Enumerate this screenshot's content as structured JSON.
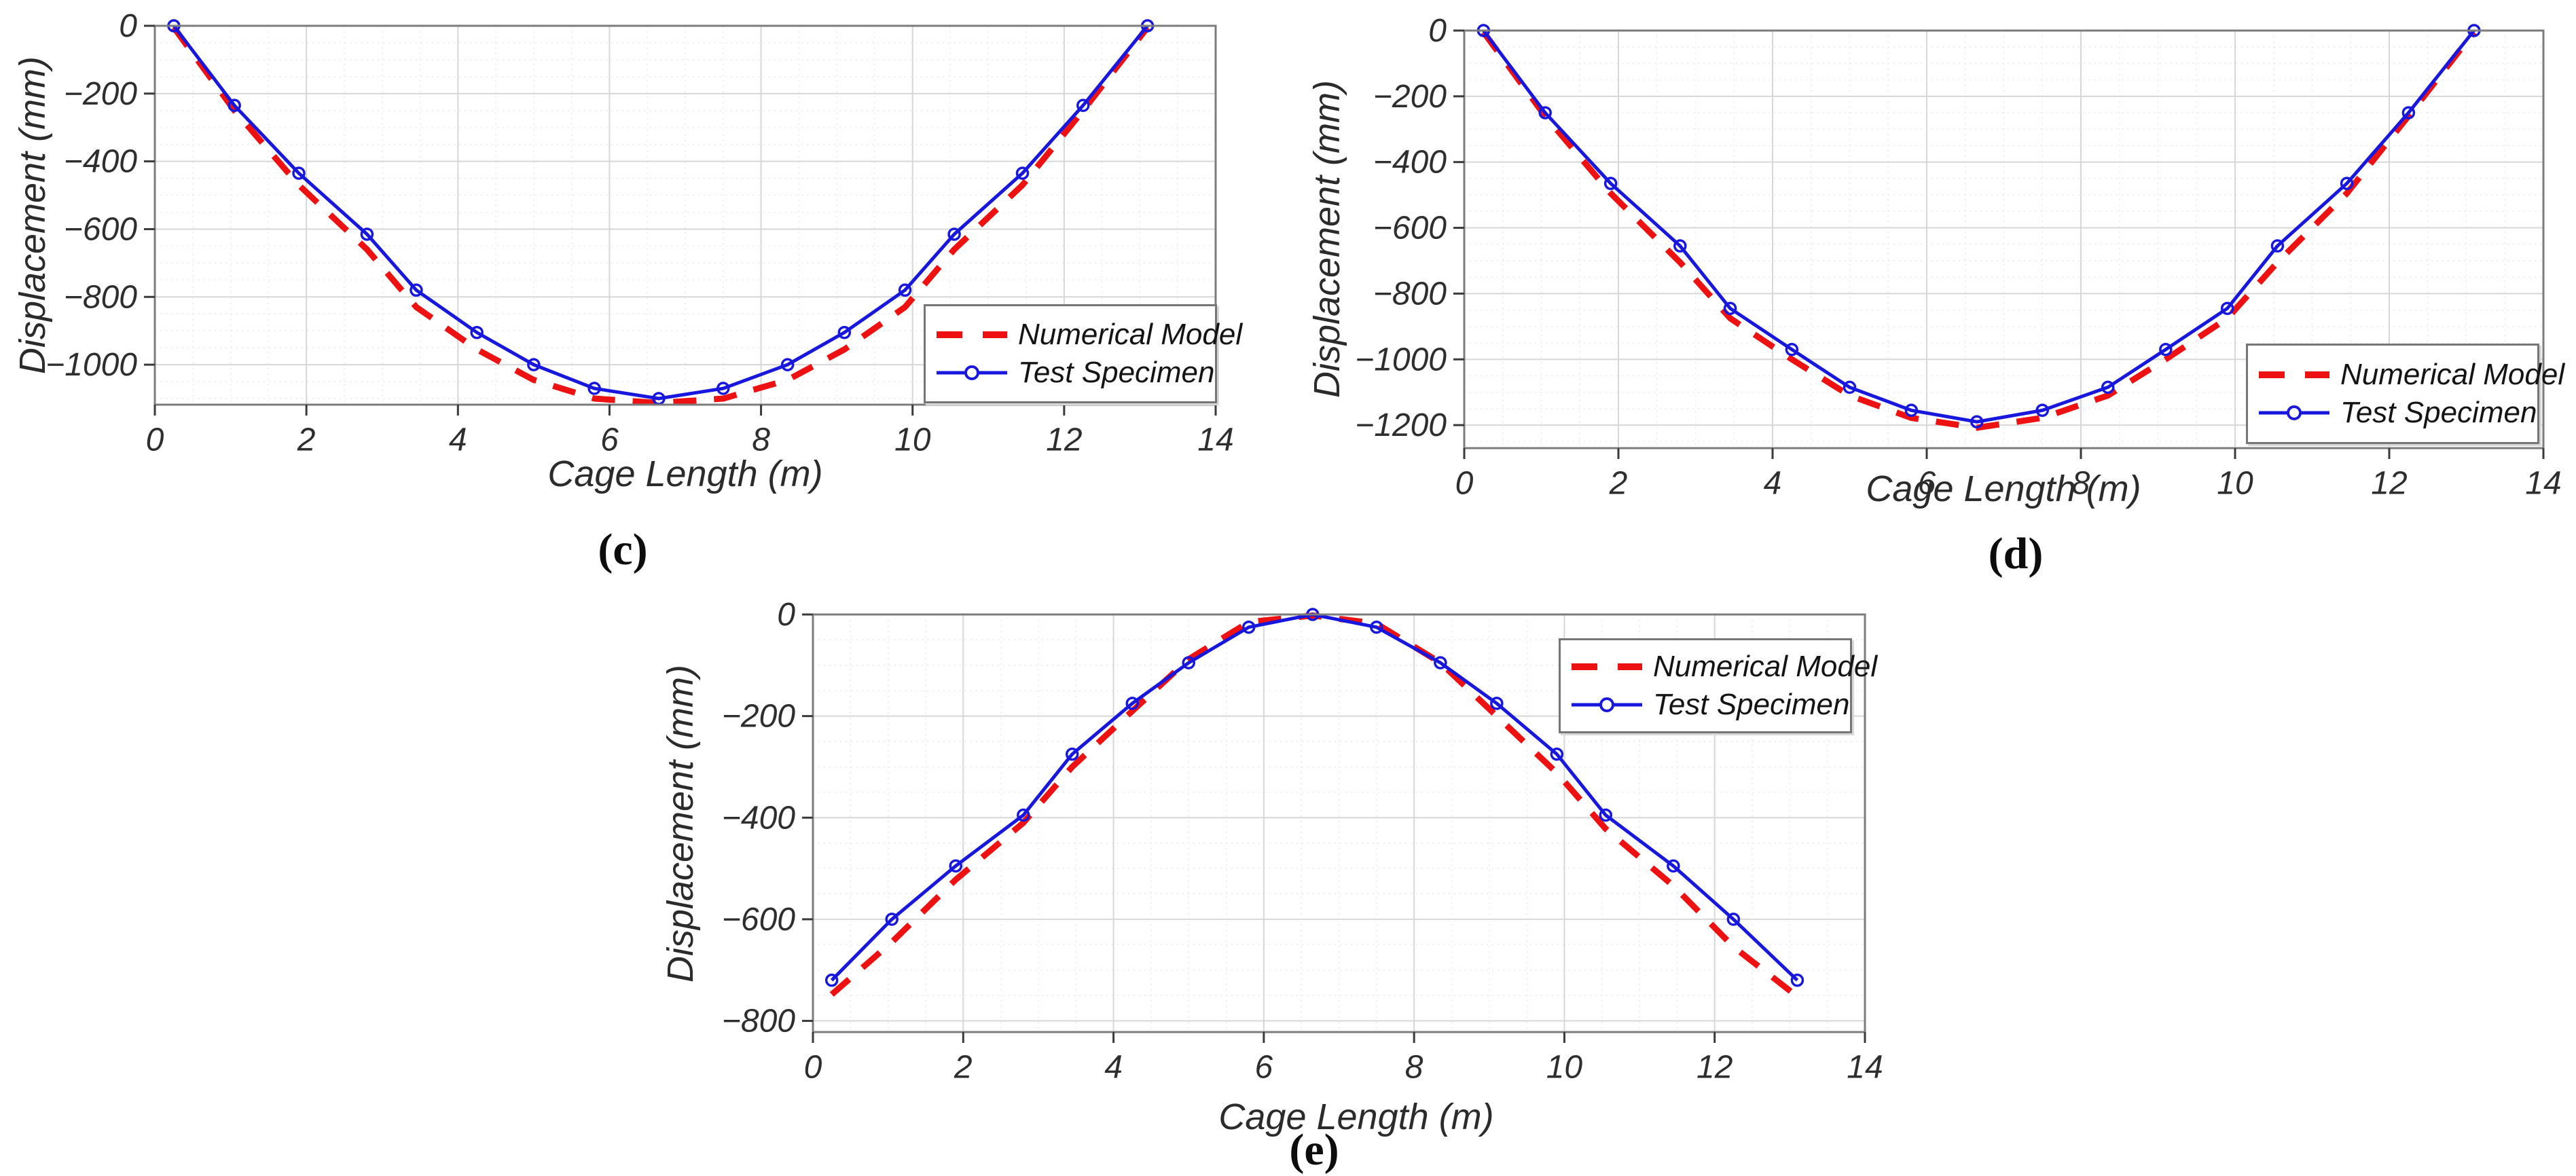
{
  "figure": {
    "description": "Displacement along cage length: numerical model vs test specimen",
    "background": "#ffffff"
  },
  "chart_data": [
    {
      "id": "c",
      "type": "line",
      "caption": "(c)",
      "xlabel": "Cage Length (m)",
      "ylabel": "Displacement (mm)",
      "xlim": [
        0,
        14
      ],
      "ylim": [
        -1118,
        0
      ],
      "xticks": [
        0,
        2,
        4,
        6,
        8,
        10,
        12,
        14
      ],
      "yticks": [
        0,
        -200,
        -400,
        -600,
        -800,
        -1000
      ],
      "grid": true,
      "legend_position": "southeast",
      "x": [
        0.25,
        1.05,
        1.9,
        2.8,
        3.45,
        4.25,
        5,
        5.8,
        6.65,
        7.5,
        8.35,
        9.1,
        9.9,
        10.55,
        11.45,
        12.25,
        13.1
      ],
      "series": [
        {
          "name": "Numerical Model",
          "color": "#ee1111",
          "style": "dashed",
          "y": [
            -5,
            -250,
            -470,
            -660,
            -830,
            -955,
            -1045,
            -1100,
            -1113,
            -1100,
            -1045,
            -955,
            -830,
            -660,
            -470,
            -250,
            -5
          ]
        },
        {
          "name": "Test Specimen",
          "color": "#1717dd",
          "style": "solid-marker",
          "y": [
            0,
            -235,
            -435,
            -615,
            -780,
            -905,
            -1000,
            -1070,
            -1100,
            -1070,
            -1000,
            -905,
            -780,
            -615,
            -435,
            -235,
            0
          ]
        }
      ]
    },
    {
      "id": "d",
      "type": "line",
      "caption": "(d)",
      "xlabel": "Cage Length (m)",
      "ylabel": "Displacement (mm)",
      "xlim": [
        0,
        14
      ],
      "ylim": [
        -1270,
        0
      ],
      "xticks": [
        0,
        2,
        4,
        6,
        8,
        10,
        12,
        14
      ],
      "yticks": [
        0,
        -200,
        -400,
        -600,
        -800,
        -1000,
        -1200
      ],
      "grid": true,
      "legend_position": "southeast",
      "x": [
        0.25,
        1.05,
        1.9,
        2.8,
        3.45,
        4.25,
        5,
        5.8,
        6.65,
        7.5,
        8.35,
        9.1,
        9.9,
        10.55,
        11.45,
        12.25,
        13.1
      ],
      "series": [
        {
          "name": "Numerical Model",
          "color": "#ee1111",
          "style": "dashed",
          "y": [
            -5,
            -260,
            -495,
            -705,
            -875,
            -1000,
            -1110,
            -1178,
            -1208,
            -1178,
            -1110,
            -1000,
            -875,
            -705,
            -495,
            -260,
            -5
          ]
        },
        {
          "name": "Test Specimen",
          "color": "#1717dd",
          "style": "solid-marker",
          "y": [
            0,
            -250,
            -465,
            -655,
            -845,
            -970,
            -1085,
            -1155,
            -1190,
            -1155,
            -1085,
            -970,
            -845,
            -655,
            -465,
            -250,
            0
          ]
        }
      ]
    },
    {
      "id": "e",
      "type": "line",
      "caption": "(e)",
      "xlabel": "Cage Length (m)",
      "ylabel": "Displacement (mm)",
      "xlim": [
        0,
        14
      ],
      "ylim": [
        -822,
        0
      ],
      "xticks": [
        0,
        2,
        4,
        6,
        8,
        10,
        12,
        14
      ],
      "yticks": [
        0,
        -200,
        -400,
        -600,
        -800
      ],
      "grid": true,
      "legend_position": "northeast",
      "x": [
        0.25,
        1.05,
        1.9,
        2.8,
        3.45,
        4.25,
        5,
        5.8,
        6.65,
        7.5,
        8.35,
        9.1,
        9.9,
        10.55,
        11.45,
        12.25,
        13.1
      ],
      "series": [
        {
          "name": "Numerical Model",
          "color": "#ee1111",
          "style": "dashed",
          "y": [
            -748,
            -645,
            -522,
            -410,
            -300,
            -190,
            -88,
            -15,
            -2,
            -18,
            -95,
            -200,
            -312,
            -422,
            -534,
            -654,
            -752
          ]
        },
        {
          "name": "Test Specimen",
          "color": "#1717dd",
          "style": "solid-marker",
          "y": [
            -720,
            -600,
            -495,
            -395,
            -275,
            -175,
            -95,
            -25,
            0,
            -25,
            -95,
            -175,
            -275,
            -395,
            -495,
            -600,
            -720
          ]
        }
      ]
    }
  ]
}
